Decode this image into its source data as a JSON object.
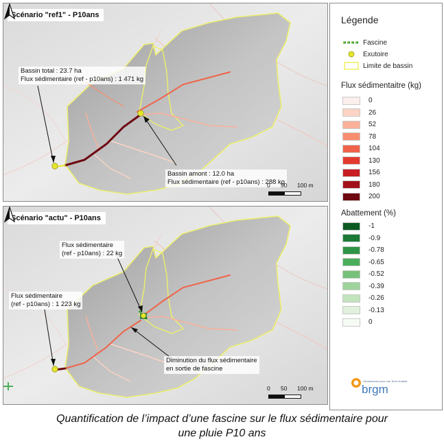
{
  "maps": {
    "top": {
      "scenario": "Scénario \"ref1\" - P10ans",
      "note_total_1": "Bassin total : 23.7 ha",
      "note_total_2": "Flux sédimentaire (ref - p10ans) : 1 471 kg",
      "note_amont_1": "Bassin amont : 12.0 ha",
      "note_amont_2": "Flux sédimentaire (ref - p10ans) : 288 kg",
      "scale": [
        "0",
        "50",
        "100 m"
      ]
    },
    "bottom": {
      "scenario": "Scénario \"actu\" - P10ans",
      "note_upper_1": "Flux sédimentaire",
      "note_upper_2": "(ref - p10ans) : 22 kg",
      "note_left_1": "Flux sédimentaire",
      "note_left_2": "(ref - p10ans) : 1 223 kg",
      "note_dim_1": "Diminution du flux sédimentaire",
      "note_dim_2": "en sortie de fascine",
      "scale": [
        "0",
        "50",
        "100 m"
      ]
    }
  },
  "legend": {
    "title": "Légende",
    "items": [
      {
        "label": "Fascine",
        "color": "#2e9a3a"
      },
      {
        "label": "Exutoire",
        "color": "#e6e62a"
      },
      {
        "label": "Limite de bassin",
        "color": "#eef06a"
      }
    ],
    "flux": {
      "title": "Flux sédimentaitre (kg)",
      "classes": [
        {
          "label": "0",
          "color": "#fcf0ec"
        },
        {
          "label": "26",
          "color": "#fcd3c4"
        },
        {
          "label": "52",
          "color": "#fbb09a"
        },
        {
          "label": "78",
          "color": "#f78e6f"
        },
        {
          "label": "104",
          "color": "#f0634a"
        },
        {
          "label": "130",
          "color": "#e33a2f"
        },
        {
          "label": "156",
          "color": "#c81d22"
        },
        {
          "label": "180",
          "color": "#a11218"
        },
        {
          "label": "200",
          "color": "#6e0811"
        }
      ]
    },
    "abattement": {
      "title": "Abattement (%)",
      "classes": [
        {
          "label": "-1",
          "color": "#0b5a22"
        },
        {
          "label": "-0.9",
          "color": "#1b7a36"
        },
        {
          "label": "-0.78",
          "color": "#2f9446"
        },
        {
          "label": "-0.65",
          "color": "#4cae5a"
        },
        {
          "label": "-0.52",
          "color": "#77c27a"
        },
        {
          "label": "-0.39",
          "color": "#9ed49c"
        },
        {
          "label": "-0.26",
          "color": "#c2e4bd"
        },
        {
          "label": "-0.13",
          "color": "#e0f0dc"
        },
        {
          "label": "0",
          "color": "#f6fbf4"
        }
      ]
    },
    "logo_text": "brgm",
    "logo_tagline": "Géosciences pour une Terre durable"
  },
  "caption_line1": "Quantification de l’impact d’une fascine sur le flux sédimentaire pour",
  "caption_line2": "une pluie P10 ans"
}
